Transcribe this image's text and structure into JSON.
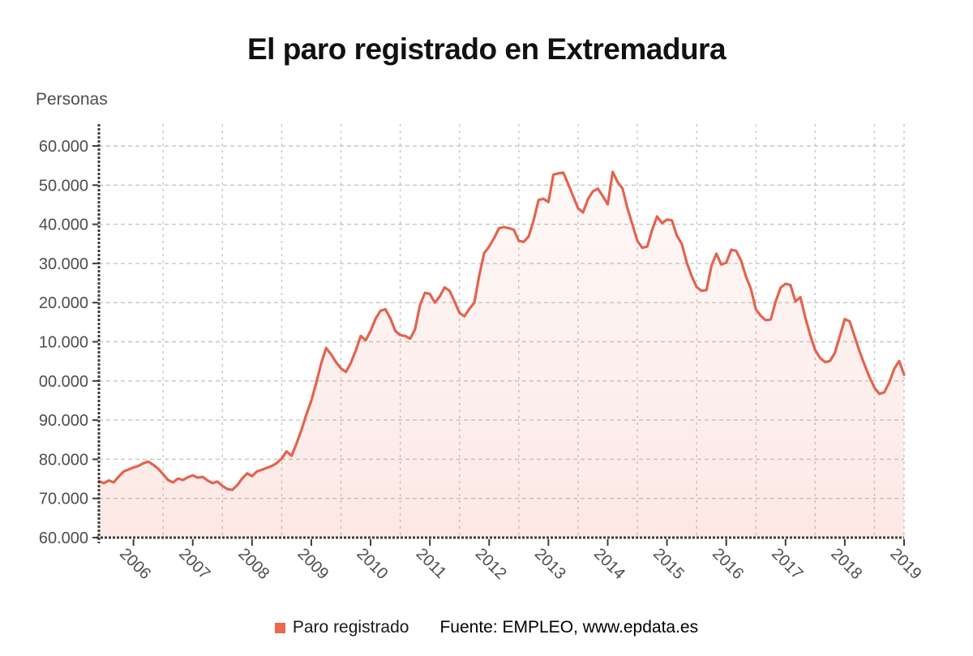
{
  "page": {
    "title": "El paro registrado en Extremadura",
    "y_axis_unit_label": "Personas"
  },
  "legend": {
    "series_label": "Paro registrado"
  },
  "source": {
    "text": "Fuente: EMPLEO, www.epdata.es"
  },
  "chart_data": {
    "type": "area",
    "title": "El paro registrado en Extremadura",
    "ylabel": "Personas",
    "xlabel": "",
    "grid": true,
    "legend_position": "bottom",
    "x_tick_labels": [
      "2006",
      "2007",
      "2008",
      "2009",
      "2010",
      "2011",
      "2012",
      "2013",
      "2014",
      "2015",
      "2016",
      "2017",
      "2018",
      "2019"
    ],
    "y_ticks_displayed": [
      "60.000",
      "50.000",
      "40.000",
      "30.000",
      "20.000",
      "10.000",
      "00.000",
      "90.000",
      "80.000",
      "70.000",
      "60.000"
    ],
    "y_axis_actual_range_persons": [
      60000,
      160000
    ],
    "y_grid_step_persons": 10000,
    "colors": {
      "line": "#e2644e",
      "legend_marker": "#ea6a50",
      "area_tint": "#e8684f",
      "grid": "#c6c6c6",
      "axis": "#3d3d3d",
      "labels": "#4d4d4d",
      "title": "#111111"
    },
    "series": [
      {
        "name": "Paro registrado",
        "frequency": "monthly",
        "start_month": "2005-06",
        "end_month": "2019-01",
        "values_persons": [
          74400,
          73900,
          74600,
          74100,
          75600,
          76900,
          77400,
          77900,
          78300,
          79000,
          79400,
          78600,
          77600,
          76200,
          74700,
          74100,
          75100,
          74700,
          75400,
          75900,
          75300,
          75500,
          74600,
          73900,
          74300,
          73200,
          72400,
          72200,
          73400,
          75100,
          76400,
          75700,
          76900,
          77300,
          77800,
          78300,
          79000,
          80200,
          82000,
          80900,
          84000,
          87500,
          91500,
          95000,
          99500,
          104500,
          108400,
          106800,
          104800,
          103200,
          102300,
          104600,
          107800,
          111500,
          110400,
          112800,
          115900,
          117900,
          118300,
          116000,
          112800,
          111700,
          111500,
          110800,
          113200,
          119400,
          122500,
          122200,
          120000,
          121600,
          123900,
          123000,
          120300,
          117400,
          116500,
          118400,
          120000,
          127000,
          132700,
          134300,
          136500,
          139000,
          139300,
          139000,
          138600,
          135800,
          135500,
          136900,
          141000,
          146200,
          146500,
          145700,
          152700,
          153000,
          153200,
          150300,
          147200,
          144100,
          143000,
          146400,
          148400,
          149100,
          147200,
          145100,
          153400,
          150800,
          149100,
          144100,
          140000,
          135800,
          134000,
          134300,
          138600,
          142000,
          140300,
          141200,
          141000,
          137100,
          135000,
          130200,
          126800,
          124000,
          123000,
          123200,
          129400,
          132500,
          129700,
          130200,
          133500,
          133200,
          130700,
          126600,
          123500,
          118300,
          116600,
          115500,
          115700,
          120300,
          123800,
          124800,
          124500,
          120300,
          121400,
          116200,
          111700,
          107900,
          105900,
          104800,
          105100,
          107200,
          111500,
          115800,
          115200,
          111300,
          107500,
          104100,
          101000,
          98300,
          96700,
          97100,
          99600,
          103100,
          105100,
          101600
        ]
      }
    ]
  }
}
